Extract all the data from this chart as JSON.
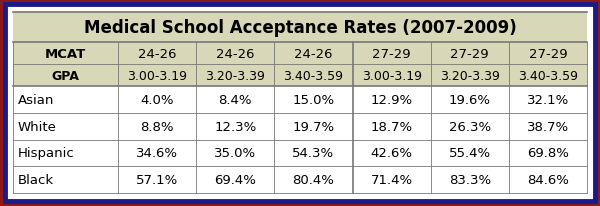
{
  "title": "Medical School Acceptance Rates (2007-2009)",
  "col_headers": [
    "MCAT",
    "24-26",
    "24-26",
    "24-26",
    "27-29",
    "27-29",
    "27-29"
  ],
  "gpa_row": [
    "GPA",
    "3.00-3.19",
    "3.20-3.39",
    "3.40-3.59",
    "3.00-3.19",
    "3.20-3.39",
    "3.40-3.59"
  ],
  "data_rows": [
    [
      "Asian",
      "4.0%",
      "8.4%",
      "15.0%",
      "12.9%",
      "19.6%",
      "32.1%"
    ],
    [
      "White",
      "8.8%",
      "12.3%",
      "19.7%",
      "18.7%",
      "26.3%",
      "38.7%"
    ],
    [
      "Hispanic",
      "34.6%",
      "35.0%",
      "54.3%",
      "42.6%",
      "55.4%",
      "69.8%"
    ],
    [
      "Black",
      "57.1%",
      "69.4%",
      "80.4%",
      "71.4%",
      "83.3%",
      "84.6%"
    ]
  ],
  "outer_border_color": "#8B1A1A",
  "inner_border_color": "#1A1A8B",
  "header_bg": "#D8D8B8",
  "data_bg": "#FFFFFF",
  "title_fontsize": 12,
  "header_fontsize": 9.5,
  "cell_fontsize": 9.5,
  "fig_width": 6.0,
  "fig_height": 2.07
}
